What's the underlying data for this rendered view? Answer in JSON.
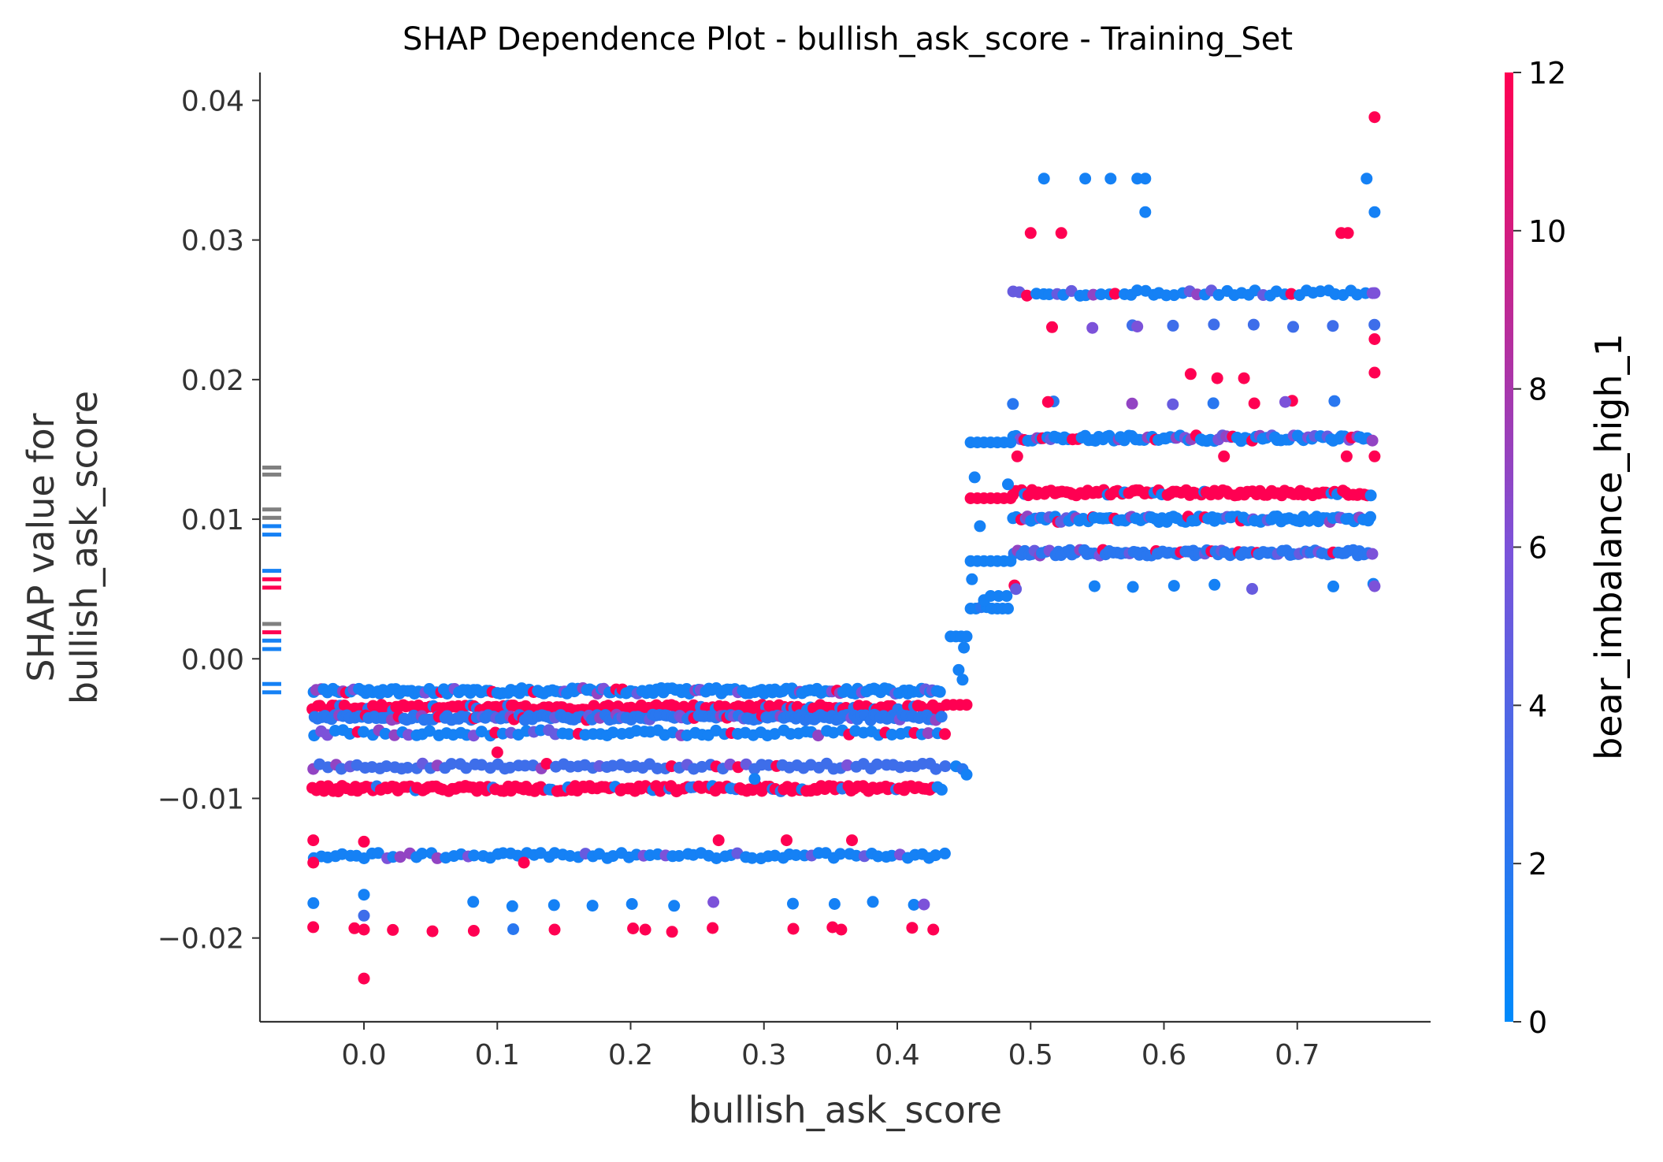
{
  "chart_data": {
    "type": "scatter",
    "title": "SHAP Dependence Plot - bullish_ask_score - Training_Set",
    "xlabel": "bullish_ask_score",
    "ylabel_lines": [
      "SHAP value for",
      "bullish_ask_score"
    ],
    "xlim": [
      -0.078,
      0.8
    ],
    "ylim": [
      -0.026,
      0.042
    ],
    "x_ticks": [
      0.0,
      0.1,
      0.2,
      0.3,
      0.4,
      0.5,
      0.6,
      0.7
    ],
    "x_tick_labels": [
      "0.0",
      "0.1",
      "0.2",
      "0.3",
      "0.4",
      "0.5",
      "0.6",
      "0.7"
    ],
    "y_ticks": [
      -0.02,
      -0.01,
      0.0,
      0.01,
      0.02,
      0.03,
      0.04
    ],
    "y_tick_labels": [
      "−0.02",
      "−0.01",
      "0.00",
      "0.01",
      "0.02",
      "0.03",
      "0.04"
    ],
    "grid": false,
    "colorbar": {
      "label": "bear_imbalance_high_1",
      "range": [
        0,
        12
      ],
      "ticks": [
        0,
        2,
        4,
        6,
        8,
        10,
        12
      ],
      "tick_labels": [
        "0",
        "2",
        "4",
        "6",
        "8",
        "10",
        "12"
      ],
      "color_low": "#008afb",
      "color_mid": "#7c52d9",
      "color_high": "#ff0052"
    },
    "missing_value_color": "#808080",
    "rows_low_regime": {
      "x_range": [
        -0.038,
        0.435
      ],
      "levels": [
        {
          "y": -0.0023,
          "color_value": 1,
          "density": "dense"
        },
        {
          "y": -0.0035,
          "color_value": 12,
          "density": "dense"
        },
        {
          "y": -0.0042,
          "color_value": 2,
          "density": "dense"
        },
        {
          "y": -0.0053,
          "color_value": 1,
          "density": "medium"
        },
        {
          "y": -0.0077,
          "color_value": 3,
          "density": "medium"
        },
        {
          "y": -0.0093,
          "color_value": 12,
          "density": "dense"
        },
        {
          "y": -0.0141,
          "color_value": 1,
          "density": "medium"
        },
        {
          "y": -0.0176,
          "color_value": 1,
          "density": "sparse"
        },
        {
          "y": -0.0194,
          "color_value": 12,
          "density": "sparse"
        }
      ]
    },
    "rows_high_regime": {
      "x_range": [
        0.487,
        0.758
      ],
      "levels": [
        {
          "y": 0.0262,
          "color_value": 1,
          "density": "medium"
        },
        {
          "y": 0.0238,
          "color_value": 3,
          "density": "sparse"
        },
        {
          "y": 0.0184,
          "color_value": 2,
          "density": "sparse"
        },
        {
          "y": 0.0158,
          "color_value": 1,
          "density": "dense"
        },
        {
          "y": 0.0119,
          "color_value": 12,
          "density": "dense"
        },
        {
          "y": 0.01,
          "color_value": 1,
          "density": "dense"
        },
        {
          "y": 0.0076,
          "color_value": 2,
          "density": "dense"
        },
        {
          "y": 0.0052,
          "color_value": 1,
          "density": "sparse"
        }
      ]
    },
    "transition_points": [
      {
        "x": 0.437,
        "y": -0.0033,
        "c": 12
      },
      {
        "x": 0.442,
        "y": -0.0033,
        "c": 12
      },
      {
        "x": 0.447,
        "y": -0.0033,
        "c": 12
      },
      {
        "x": 0.452,
        "y": -0.0033,
        "c": 12
      },
      {
        "x": 0.44,
        "y": 0.0016,
        "c": 1
      },
      {
        "x": 0.444,
        "y": 0.0016,
        "c": 1
      },
      {
        "x": 0.448,
        "y": 0.0016,
        "c": 1
      },
      {
        "x": 0.452,
        "y": 0.0016,
        "c": 1
      },
      {
        "x": 0.45,
        "y": 0.0008,
        "c": 1
      },
      {
        "x": 0.446,
        "y": -0.0008,
        "c": 1
      },
      {
        "x": 0.449,
        "y": -0.0015,
        "c": 1
      },
      {
        "x": 0.444,
        "y": -0.0077,
        "c": 1
      },
      {
        "x": 0.449,
        "y": -0.0079,
        "c": 2
      },
      {
        "x": 0.452,
        "y": -0.0083,
        "c": 1
      },
      {
        "x": 0.455,
        "y": 0.0036,
        "c": 1
      },
      {
        "x": 0.459,
        "y": 0.0036,
        "c": 1
      },
      {
        "x": 0.463,
        "y": 0.0037,
        "c": 2
      },
      {
        "x": 0.467,
        "y": 0.0037,
        "c": 1
      },
      {
        "x": 0.471,
        "y": 0.0036,
        "c": 1
      },
      {
        "x": 0.475,
        "y": 0.0036,
        "c": 1
      },
      {
        "x": 0.479,
        "y": 0.0036,
        "c": 1
      },
      {
        "x": 0.483,
        "y": 0.0036,
        "c": 1
      },
      {
        "x": 0.465,
        "y": 0.0042,
        "c": 1
      },
      {
        "x": 0.47,
        "y": 0.0045,
        "c": 1
      },
      {
        "x": 0.476,
        "y": 0.0045,
        "c": 1
      },
      {
        "x": 0.482,
        "y": 0.0045,
        "c": 1
      },
      {
        "x": 0.456,
        "y": 0.0057,
        "c": 1
      },
      {
        "x": 0.455,
        "y": 0.007,
        "c": 1
      },
      {
        "x": 0.46,
        "y": 0.007,
        "c": 1
      },
      {
        "x": 0.465,
        "y": 0.007,
        "c": 1
      },
      {
        "x": 0.47,
        "y": 0.007,
        "c": 1
      },
      {
        "x": 0.475,
        "y": 0.007,
        "c": 1
      },
      {
        "x": 0.48,
        "y": 0.007,
        "c": 1
      },
      {
        "x": 0.485,
        "y": 0.007,
        "c": 1
      },
      {
        "x": 0.489,
        "y": 0.005,
        "c": 5
      },
      {
        "x": 0.455,
        "y": 0.0115,
        "c": 12
      },
      {
        "x": 0.46,
        "y": 0.0115,
        "c": 12
      },
      {
        "x": 0.465,
        "y": 0.0115,
        "c": 12
      },
      {
        "x": 0.47,
        "y": 0.0115,
        "c": 12
      },
      {
        "x": 0.475,
        "y": 0.0115,
        "c": 12
      },
      {
        "x": 0.48,
        "y": 0.0115,
        "c": 12
      },
      {
        "x": 0.485,
        "y": 0.0115,
        "c": 12
      },
      {
        "x": 0.455,
        "y": 0.0155,
        "c": 1
      },
      {
        "x": 0.46,
        "y": 0.0155,
        "c": 1
      },
      {
        "x": 0.465,
        "y": 0.0155,
        "c": 1
      },
      {
        "x": 0.47,
        "y": 0.0155,
        "c": 1
      },
      {
        "x": 0.475,
        "y": 0.0155,
        "c": 1
      },
      {
        "x": 0.48,
        "y": 0.0155,
        "c": 1
      },
      {
        "x": 0.485,
        "y": 0.0155,
        "c": 1
      },
      {
        "x": 0.458,
        "y": 0.013,
        "c": 1
      },
      {
        "x": 0.462,
        "y": 0.0095,
        "c": 1
      },
      {
        "x": 0.483,
        "y": 0.0125,
        "c": 1
      }
    ],
    "outlier_points": [
      {
        "x": 0.0,
        "y": -0.0229,
        "c": 12
      },
      {
        "x": 0.0,
        "y": -0.0194,
        "c": 12
      },
      {
        "x": 0.0,
        "y": -0.0184,
        "c": 3
      },
      {
        "x": 0.0,
        "y": -0.0169,
        "c": 1
      },
      {
        "x": 0.0,
        "y": -0.0131,
        "c": 12
      },
      {
        "x": -0.038,
        "y": -0.0146,
        "c": 12
      },
      {
        "x": -0.038,
        "y": -0.013,
        "c": 12
      },
      {
        "x": 0.143,
        "y": -0.0194,
        "c": 12
      },
      {
        "x": 0.211,
        "y": -0.0194,
        "c": 12
      },
      {
        "x": 0.358,
        "y": -0.0194,
        "c": 12
      },
      {
        "x": 0.427,
        "y": -0.0194,
        "c": 12
      },
      {
        "x": 0.42,
        "y": -0.0176,
        "c": 6
      },
      {
        "x": 0.1,
        "y": -0.0067,
        "c": 12
      },
      {
        "x": 0.12,
        "y": -0.0146,
        "c": 12
      },
      {
        "x": 0.266,
        "y": -0.013,
        "c": 12
      },
      {
        "x": 0.317,
        "y": -0.013,
        "c": 12
      },
      {
        "x": 0.366,
        "y": -0.013,
        "c": 12
      },
      {
        "x": 0.293,
        "y": -0.0086,
        "c": 1
      },
      {
        "x": 0.758,
        "y": 0.0388,
        "c": 12
      },
      {
        "x": 0.51,
        "y": 0.0344,
        "c": 1
      },
      {
        "x": 0.541,
        "y": 0.0344,
        "c": 1
      },
      {
        "x": 0.56,
        "y": 0.0344,
        "c": 1
      },
      {
        "x": 0.58,
        "y": 0.0344,
        "c": 1
      },
      {
        "x": 0.586,
        "y": 0.0344,
        "c": 1
      },
      {
        "x": 0.752,
        "y": 0.0344,
        "c": 1
      },
      {
        "x": 0.586,
        "y": 0.032,
        "c": 1
      },
      {
        "x": 0.758,
        "y": 0.032,
        "c": 1
      },
      {
        "x": 0.5,
        "y": 0.0305,
        "c": 12
      },
      {
        "x": 0.523,
        "y": 0.0305,
        "c": 12
      },
      {
        "x": 0.733,
        "y": 0.0305,
        "c": 12
      },
      {
        "x": 0.738,
        "y": 0.0305,
        "c": 12
      },
      {
        "x": 0.758,
        "y": 0.0229,
        "c": 12
      },
      {
        "x": 0.62,
        "y": 0.0204,
        "c": 12
      },
      {
        "x": 0.64,
        "y": 0.0201,
        "c": 12
      },
      {
        "x": 0.66,
        "y": 0.0201,
        "c": 12
      },
      {
        "x": 0.758,
        "y": 0.0205,
        "c": 12
      },
      {
        "x": 0.513,
        "y": 0.0184,
        "c": 12
      },
      {
        "x": 0.691,
        "y": 0.0184,
        "c": 6
      },
      {
        "x": 0.49,
        "y": 0.0145,
        "c": 12
      },
      {
        "x": 0.645,
        "y": 0.0145,
        "c": 12
      },
      {
        "x": 0.737,
        "y": 0.0145,
        "c": 12
      },
      {
        "x": 0.758,
        "y": 0.0145,
        "c": 12
      },
      {
        "x": 0.758,
        "y": 0.0052,
        "c": 6
      },
      {
        "x": 0.758,
        "y": 0.0262,
        "c": 6
      },
      {
        "x": 0.58,
        "y": 0.0238,
        "c": 6
      }
    ],
    "missing_value_bars": [
      {
        "y": 0.0137,
        "c": null
      },
      {
        "y": 0.0132,
        "c": null
      },
      {
        "y": 0.0107,
        "c": null
      },
      {
        "y": 0.0101,
        "c": null
      },
      {
        "y": 0.0095,
        "c": 1
      },
      {
        "y": 0.0089,
        "c": 1
      },
      {
        "y": 0.0063,
        "c": 1
      },
      {
        "y": 0.0057,
        "c": 12
      },
      {
        "y": 0.0051,
        "c": 12
      },
      {
        "y": 0.0025,
        "c": null
      },
      {
        "y": 0.0019,
        "c": 12
      },
      {
        "y": 0.0013,
        "c": 1
      },
      {
        "y": 0.0007,
        "c": 1
      },
      {
        "y": -0.0018,
        "c": 1
      },
      {
        "y": -0.0024,
        "c": 1
      }
    ]
  }
}
